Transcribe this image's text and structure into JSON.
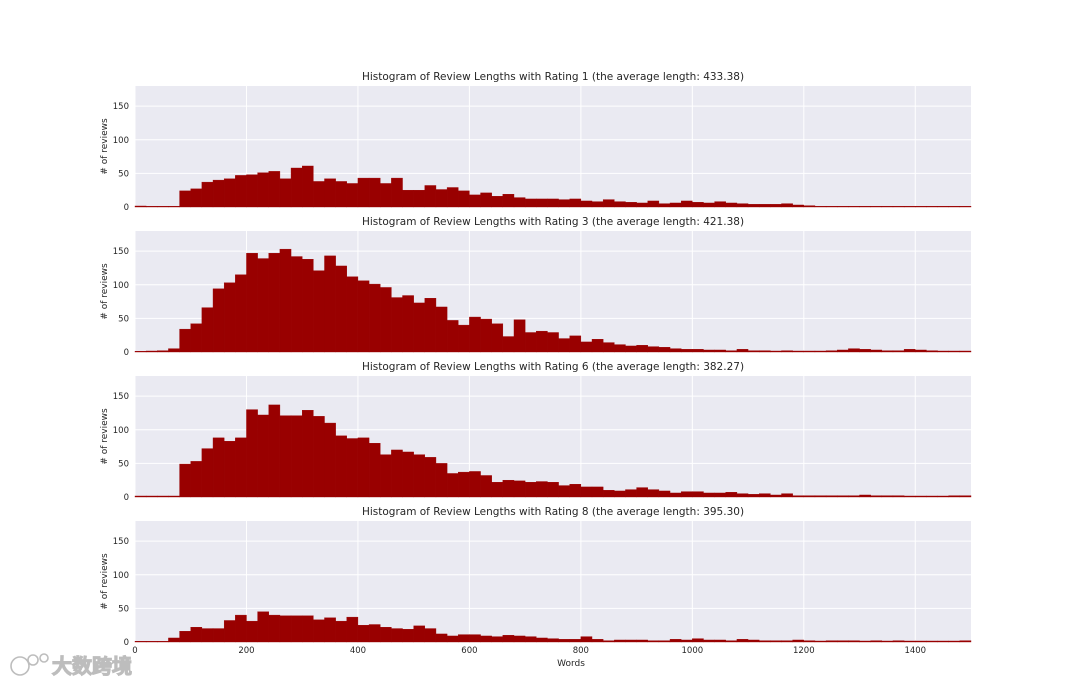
{
  "chart_data": [
    {
      "type": "bar",
      "title": "Histogram of Review Lengths with Rating 1 (the average length: 433.38)",
      "xlabel": "",
      "ylabel": "# of reviews",
      "xlim": [
        0,
        1500
      ],
      "ylim": [
        0,
        180
      ],
      "bin_width": 20,
      "bin_start": 0,
      "yticks": [
        "0",
        "50",
        "100",
        "150"
      ],
      "xticks": [],
      "grid": true,
      "values": [
        1,
        0,
        0,
        0,
        24,
        27,
        37,
        40,
        42,
        47,
        48,
        51,
        53,
        42,
        58,
        61,
        38,
        42,
        38,
        35,
        43,
        43,
        35,
        43,
        25,
        25,
        32,
        26,
        29,
        24,
        18,
        21,
        16,
        19,
        14,
        12,
        12,
        12,
        11,
        12,
        9,
        8,
        11,
        8,
        7,
        6,
        9,
        5,
        6,
        9,
        7,
        6,
        8,
        6,
        5,
        4,
        4,
        4,
        5,
        3,
        2,
        0,
        0,
        0,
        0,
        0,
        0,
        0,
        0,
        0,
        0,
        0,
        0,
        0,
        0,
        1,
        1,
        1,
        1,
        1,
        0,
        0,
        1,
        0,
        0,
        1,
        1,
        1,
        0,
        0,
        1,
        1,
        0,
        1,
        0,
        1,
        0,
        0,
        1,
        0,
        0,
        1,
        0,
        0,
        0,
        1,
        0,
        0,
        1,
        0,
        0
      ]
    },
    {
      "type": "bar",
      "title": "Histogram of Review Lengths with Rating 3 (the average length: 421.38)",
      "xlabel": "",
      "ylabel": "# of reviews",
      "xlim": [
        0,
        1500
      ],
      "ylim": [
        0,
        180
      ],
      "bin_width": 20,
      "bin_start": 0,
      "yticks": [
        "0",
        "50",
        "100",
        "150"
      ],
      "xticks": [],
      "grid": true,
      "values": [
        0,
        1,
        2,
        5,
        34,
        42,
        66,
        94,
        103,
        115,
        147,
        139,
        147,
        153,
        142,
        138,
        121,
        143,
        128,
        112,
        106,
        101,
        96,
        81,
        84,
        73,
        80,
        67,
        47,
        40,
        52,
        49,
        42,
        23,
        48,
        29,
        31,
        29,
        20,
        24,
        15,
        19,
        14,
        11,
        9,
        10,
        8,
        7,
        5,
        4,
        4,
        3,
        3,
        2,
        4,
        2,
        2,
        1,
        2,
        1,
        1,
        1,
        2,
        3,
        5,
        4,
        3,
        2,
        2,
        4,
        3,
        2,
        1,
        1,
        1,
        2,
        1,
        2,
        1,
        2,
        1,
        2,
        1,
        1,
        1,
        1,
        0,
        1,
        1,
        0,
        1,
        1,
        0,
        1,
        1,
        0,
        1,
        1,
        0,
        0,
        1,
        0,
        0,
        1,
        0,
        1,
        0,
        1,
        0,
        1,
        0,
        1,
        0,
        0,
        1,
        0,
        1
      ]
    },
    {
      "type": "bar",
      "title": "Histogram of Review Lengths with Rating 6 (the average length: 382.27)",
      "xlabel": "",
      "ylabel": "# of reviews",
      "xlim": [
        0,
        1500
      ],
      "ylim": [
        0,
        180
      ],
      "bin_width": 20,
      "bin_start": 0,
      "yticks": [
        "0",
        "50",
        "100",
        "150"
      ],
      "xticks": [],
      "grid": true,
      "values": [
        1,
        1,
        1,
        1,
        49,
        53,
        72,
        88,
        83,
        88,
        130,
        122,
        137,
        121,
        121,
        129,
        120,
        110,
        91,
        87,
        88,
        80,
        63,
        70,
        67,
        63,
        59,
        50,
        35,
        37,
        38,
        32,
        22,
        25,
        24,
        22,
        23,
        22,
        17,
        19,
        15,
        15,
        10,
        9,
        11,
        14,
        11,
        9,
        6,
        8,
        8,
        6,
        6,
        7,
        5,
        4,
        5,
        3,
        5,
        2,
        2,
        2,
        2,
        2,
        2,
        3,
        2,
        2,
        2,
        1,
        1,
        1,
        1,
        2,
        2,
        1,
        1,
        1,
        1,
        1,
        1,
        0,
        1,
        1,
        0,
        1,
        0,
        1,
        0,
        1,
        1,
        1,
        1,
        1,
        1,
        1,
        1,
        1,
        1,
        1,
        1,
        1,
        1,
        1,
        1,
        1,
        1,
        1,
        1,
        1,
        1,
        1,
        1,
        1,
        1,
        1,
        1,
        1,
        1,
        1,
        1,
        1,
        1
      ]
    },
    {
      "type": "bar",
      "title": "Histogram of Review Lengths with Rating 8 (the average length: 395.30)",
      "xlabel": "Words",
      "ylabel": "# of reviews",
      "xlim": [
        0,
        1500
      ],
      "ylim": [
        0,
        180
      ],
      "bin_width": 20,
      "bin_start": 0,
      "yticks": [
        "0",
        "50",
        "100",
        "150"
      ],
      "xticks": [
        "0",
        "200",
        "400",
        "600",
        "800",
        "1000",
        "1200",
        "1400"
      ],
      "grid": true,
      "values": [
        0,
        0,
        0,
        6,
        16,
        22,
        20,
        20,
        32,
        40,
        31,
        45,
        40,
        39,
        39,
        39,
        33,
        36,
        31,
        37,
        25,
        26,
        22,
        20,
        19,
        24,
        20,
        12,
        9,
        11,
        11,
        9,
        8,
        10,
        9,
        8,
        6,
        5,
        4,
        4,
        8,
        4,
        2,
        3,
        3,
        3,
        2,
        2,
        4,
        3,
        5,
        3,
        3,
        2,
        4,
        3,
        2,
        2,
        2,
        3,
        2,
        1,
        2,
        2,
        2,
        1,
        2,
        1,
        2,
        1,
        1,
        1,
        1,
        1,
        2,
        1,
        1,
        1,
        2,
        1,
        1,
        1,
        1,
        1,
        1,
        0,
        1,
        1,
        1,
        0,
        0,
        1,
        0,
        0,
        1,
        0,
        0,
        0,
        0,
        1,
        0,
        0,
        0,
        0,
        0,
        0,
        0,
        0,
        0,
        0,
        0,
        0,
        0,
        0,
        0,
        0,
        0,
        0,
        0,
        0,
        0,
        0,
        0,
        0
      ]
    }
  ],
  "watermark": {
    "text": "大数跨境",
    "icon": "logo-icon"
  }
}
